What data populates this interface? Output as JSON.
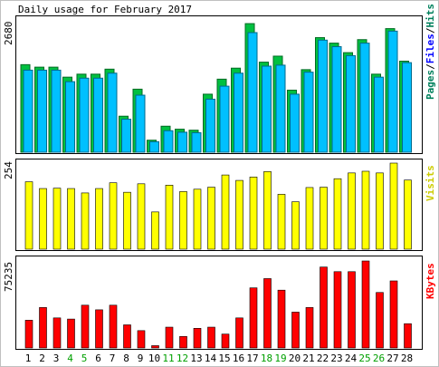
{
  "chart_data": [
    {
      "type": "bar",
      "title": "Daily usage for February 2017",
      "y_axis_max_label": "2680",
      "ylim": [
        0,
        2680
      ],
      "legend": [
        {
          "label": "Pages",
          "color": "#00805c"
        },
        {
          "label": "Files",
          "color": "#0000ff"
        },
        {
          "label": "Hits",
          "color": "#00805c"
        }
      ],
      "legend_separator": "/",
      "categories": [
        "1",
        "2",
        "3",
        "4",
        "5",
        "6",
        "7",
        "8",
        "9",
        "10",
        "11",
        "12",
        "13",
        "14",
        "15",
        "16",
        "17",
        "18",
        "19",
        "20",
        "21",
        "22",
        "23",
        "24",
        "25",
        "26",
        "27",
        "28"
      ],
      "series": [
        {
          "name": "Hits",
          "color": "#00c040",
          "values": [
            1750,
            1700,
            1700,
            1500,
            1560,
            1560,
            1660,
            720,
            1260,
            240,
            520,
            460,
            440,
            1160,
            1460,
            1680,
            2570,
            1800,
            1920,
            1240,
            1650,
            2290,
            2180,
            1990,
            2250,
            1560,
            2470,
            1820
          ]
        },
        {
          "name": "Files",
          "color": "#00c0ff",
          "values": [
            1640,
            1640,
            1640,
            1410,
            1480,
            1480,
            1580,
            660,
            1140,
            210,
            430,
            400,
            390,
            1060,
            1320,
            1580,
            2390,
            1720,
            1740,
            1160,
            1600,
            2240,
            2110,
            1930,
            2180,
            1500,
            2420,
            1790
          ]
        }
      ]
    },
    {
      "type": "bar",
      "y_axis_max_label": "254",
      "ylim": [
        0,
        254
      ],
      "legend": [
        {
          "label": "Visits",
          "color": "#cccc00"
        }
      ],
      "categories": [
        "1",
        "2",
        "3",
        "4",
        "5",
        "6",
        "7",
        "8",
        "9",
        "10",
        "11",
        "12",
        "13",
        "14",
        "15",
        "16",
        "17",
        "18",
        "19",
        "20",
        "21",
        "22",
        "23",
        "24",
        "25",
        "26",
        "27",
        "28"
      ],
      "series": [
        {
          "name": "Visits",
          "color": "#ffff00",
          "values": [
            199,
            179,
            180,
            179,
            166,
            179,
            196,
            168,
            193,
            110,
            189,
            170,
            177,
            183,
            219,
            203,
            213,
            229,
            162,
            140,
            182,
            183,
            208,
            225,
            230,
            225,
            254,
            204
          ]
        }
      ]
    },
    {
      "type": "bar",
      "y_axis_max_label": "75235",
      "ylim": [
        0,
        75235
      ],
      "legend": [
        {
          "label": "KBytes",
          "color": "#ff0000"
        }
      ],
      "categories": [
        "1",
        "2",
        "3",
        "4",
        "5",
        "6",
        "7",
        "8",
        "9",
        "10",
        "11",
        "12",
        "13",
        "14",
        "15",
        "16",
        "17",
        "18",
        "19",
        "20",
        "21",
        "22",
        "23",
        "24",
        "25",
        "26",
        "27",
        "28"
      ],
      "series": [
        {
          "name": "KBytes",
          "color": "#ff0000",
          "values": [
            24000,
            35000,
            26000,
            25000,
            37000,
            33000,
            37000,
            20000,
            15000,
            2000,
            18000,
            10000,
            17000,
            18000,
            12000,
            26000,
            52000,
            60000,
            50000,
            31000,
            35000,
            70000,
            66000,
            66000,
            75235,
            48000,
            58000,
            21000
          ]
        }
      ]
    }
  ],
  "x_axis": {
    "labels": [
      "1",
      "2",
      "3",
      "4",
      "5",
      "6",
      "7",
      "8",
      "9",
      "10",
      "11",
      "12",
      "13",
      "14",
      "15",
      "16",
      "17",
      "18",
      "19",
      "20",
      "21",
      "22",
      "23",
      "24",
      "25",
      "26",
      "27",
      "28"
    ],
    "weekend_days": [
      "4",
      "5",
      "11",
      "12",
      "18",
      "19",
      "25",
      "26"
    ],
    "weekday_color": "#000000",
    "weekend_color": "#00a000"
  }
}
